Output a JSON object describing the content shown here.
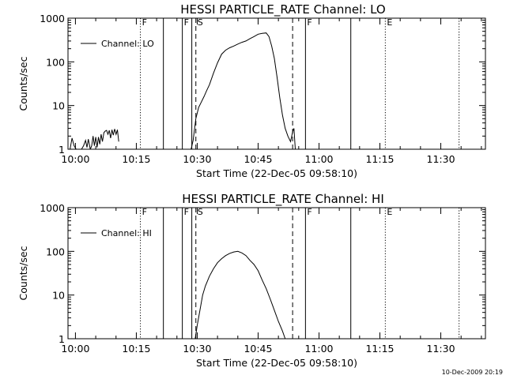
{
  "date_stamp": "10-Dec-2009 20:19",
  "chart_data": [
    {
      "type": "line",
      "title": "HESSI PARTICLE_RATE Channel: LO",
      "xlabel": "Start Time (22-Dec-05 09:58:10)",
      "ylabel": "Counts/sec",
      "log_y": true,
      "ylim": [
        1,
        1000
      ],
      "xlim": [
        "09:58:10",
        "11:41:00"
      ],
      "x_ticks": [
        "10:00",
        "10:15",
        "10:30",
        "10:45",
        "11:00",
        "11:15",
        "11:30"
      ],
      "y_ticks": [
        "1",
        "10",
        "100",
        "1000"
      ],
      "legend": {
        "position": "top-left",
        "entries": [
          "Channel: LO"
        ]
      },
      "markers": [
        {
          "label": "F",
          "time": "10:16:00",
          "style": "dotted"
        },
        {
          "label": "",
          "time": "10:21:40",
          "style": "solid"
        },
        {
          "label": "F",
          "time": "10:26:20",
          "style": "solid"
        },
        {
          "label": "",
          "time": "10:28:40",
          "style": "solid"
        },
        {
          "label": "S",
          "time": "10:29:40",
          "style": "dashed"
        },
        {
          "label": "",
          "time": "10:53:30",
          "style": "dashed"
        },
        {
          "label": "F",
          "time": "10:56:40",
          "style": "solid"
        },
        {
          "label": "",
          "time": "11:07:50",
          "style": "solid"
        },
        {
          "label": "E",
          "time": "11:16:20",
          "style": "dotted"
        },
        {
          "label": "",
          "time": "11:34:30",
          "style": "dotted"
        }
      ],
      "series": [
        {
          "name": "Channel: LO",
          "segments": [
            {
              "x": [
                "09:58:10",
                "09:58:40",
                "09:59:10",
                "09:59:40",
                "10:00:10"
              ],
              "y": [
                1,
                1,
                1.8,
                1.2,
                1
              ]
            },
            {
              "x": [
                "10:01:30",
                "10:02:00",
                "10:02:30",
                "10:02:50",
                "10:03:10",
                "10:03:40"
              ],
              "y": [
                1,
                1.2,
                1.6,
                1.1,
                1.7,
                1
              ]
            },
            {
              "x": [
                "10:03:40",
                "10:04:00",
                "10:04:20",
                "10:04:40",
                "10:05:00",
                "10:05:20",
                "10:05:40",
                "10:06:00",
                "10:06:20",
                "10:06:40",
                "10:07:00",
                "10:07:20",
                "10:07:40",
                "10:08:00",
                "10:08:20",
                "10:08:40",
                "10:09:00",
                "10:09:20",
                "10:09:40",
                "10:10:00",
                "10:10:20",
                "10:10:40"
              ],
              "y": [
                1,
                1.2,
                2,
                1.2,
                1.9,
                1.1,
                1.9,
                1.3,
                2.2,
                1.5,
                2.4,
                2.6,
                2.7,
                2.2,
                2.7,
                1.8,
                2.8,
                2.1,
                2.9,
                2.2,
                2.8,
                1.5
              ]
            },
            {
              "x": [
                "10:28:30",
                "10:29:00",
                "10:29:40",
                "10:30:20",
                "10:31:00",
                "10:31:40",
                "10:32:20",
                "10:33:00",
                "10:34:00",
                "10:35:00",
                "10:36:00",
                "10:37:00",
                "10:38:00",
                "10:39:00",
                "10:40:00",
                "10:41:00",
                "10:42:00",
                "10:43:00",
                "10:44:00",
                "10:45:00",
                "10:46:00",
                "10:47:00",
                "10:47:40",
                "10:48:20",
                "10:49:00",
                "10:49:40",
                "10:50:20",
                "10:51:00",
                "10:51:40",
                "10:52:20",
                "10:53:00",
                "10:53:30",
                "10:53:50",
                "10:54:10"
              ],
              "y": [
                1,
                1.6,
                5,
                9,
                12,
                16,
                22,
                30,
                55,
                95,
                150,
                185,
                210,
                230,
                255,
                280,
                300,
                340,
                380,
                430,
                450,
                460,
                380,
                230,
                120,
                45,
                15,
                6,
                3,
                2,
                1.5,
                2.5,
                3,
                1
              ]
            }
          ]
        }
      ]
    },
    {
      "type": "line",
      "title": "HESSI PARTICLE_RATE Channel: HI",
      "xlabel": "Start Time (22-Dec-05 09:58:10)",
      "ylabel": "Counts/sec",
      "log_y": true,
      "ylim": [
        1,
        1000
      ],
      "xlim": [
        "09:58:10",
        "11:41:00"
      ],
      "x_ticks": [
        "10:00",
        "10:15",
        "10:30",
        "10:45",
        "11:00",
        "11:15",
        "11:30"
      ],
      "y_ticks": [
        "1",
        "10",
        "100",
        "1000"
      ],
      "legend": {
        "position": "top-left",
        "entries": [
          "Channel: HI"
        ]
      },
      "markers": [
        {
          "label": "F",
          "time": "10:16:00",
          "style": "dotted"
        },
        {
          "label": "",
          "time": "10:21:40",
          "style": "solid"
        },
        {
          "label": "F",
          "time": "10:26:20",
          "style": "solid"
        },
        {
          "label": "",
          "time": "10:28:40",
          "style": "solid"
        },
        {
          "label": "S",
          "time": "10:29:40",
          "style": "dashed"
        },
        {
          "label": "",
          "time": "10:53:30",
          "style": "dashed"
        },
        {
          "label": "F",
          "time": "10:56:40",
          "style": "solid"
        },
        {
          "label": "",
          "time": "11:07:50",
          "style": "solid"
        },
        {
          "label": "E",
          "time": "11:16:20",
          "style": "dotted"
        },
        {
          "label": "",
          "time": "11:34:30",
          "style": "dotted"
        }
      ],
      "series": [
        {
          "name": "Channel: HI",
          "segments": [
            {
              "x": [
                "10:29:30",
                "10:30:00",
                "10:30:40",
                "10:31:20",
                "10:32:00",
                "10:33:00",
                "10:34:00",
                "10:35:00",
                "10:36:00",
                "10:37:00",
                "10:38:00",
                "10:39:00",
                "10:40:00",
                "10:41:00",
                "10:42:00",
                "10:43:00",
                "10:44:00",
                "10:45:00",
                "10:46:00",
                "10:47:00",
                "10:48:00",
                "10:49:00",
                "10:50:00",
                "10:51:00",
                "10:51:40"
              ],
              "y": [
                1,
                2,
                4.5,
                10,
                16,
                27,
                40,
                55,
                68,
                80,
                90,
                97,
                100,
                92,
                80,
                62,
                50,
                36,
                22,
                14,
                8,
                4.5,
                2.5,
                1.5,
                1
              ]
            }
          ]
        }
      ]
    }
  ]
}
